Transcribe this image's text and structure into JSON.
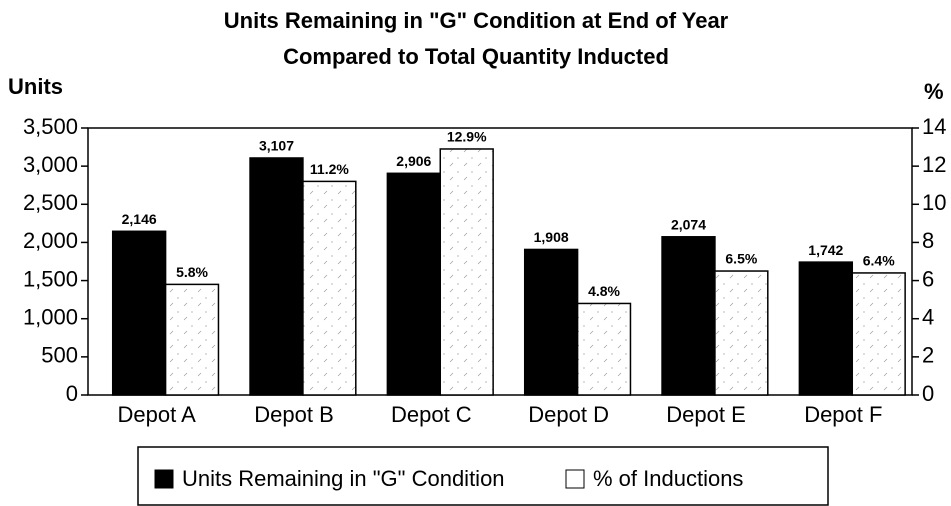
{
  "chart_data": {
    "type": "bar",
    "title": [
      "Units Remaining in \"G\" Condition at End of Year",
      "Compared to Total Quantity Inducted"
    ],
    "y_label": "Units",
    "y2_label": "%",
    "categories": [
      "Depot A",
      "Depot B",
      "Depot C",
      "Depot D",
      "Depot E",
      "Depot F"
    ],
    "series": [
      {
        "name": "Units Remaining in \"G\" Condition",
        "color": "#000000",
        "values": [
          2146,
          3107,
          2906,
          1908,
          2074,
          1742
        ],
        "value_labels": [
          "2,146",
          "3,107",
          "2,906",
          "1,908",
          "2,074",
          "1,742"
        ]
      },
      {
        "name": "% of Inductions",
        "color": "#ffffff",
        "axis": "y2",
        "values": [
          5.8,
          11.2,
          12.9,
          4.8,
          6.5,
          6.4
        ],
        "value_labels": [
          "5.8%",
          "11.2%",
          "12.9%",
          "4.8%",
          "6.5%",
          "6.4%"
        ]
      }
    ],
    "ylim": [
      0,
      3500
    ],
    "yticks": [
      0,
      500,
      {
        "value": 1000,
        "label": "1,000"
      },
      {
        "value": 1500,
        "label": "1,500"
      },
      {
        "value": 2000,
        "label": "2,000"
      },
      {
        "value": 2500,
        "label": "2,500"
      },
      {
        "value": 3000,
        "label": "3,000"
      },
      {
        "value": 3500,
        "label": "3,500"
      }
    ],
    "y2lim": [
      0,
      14
    ],
    "y2ticks": [
      0,
      2,
      4,
      6,
      8,
      10,
      12,
      14
    ],
    "legend": "bottom"
  }
}
